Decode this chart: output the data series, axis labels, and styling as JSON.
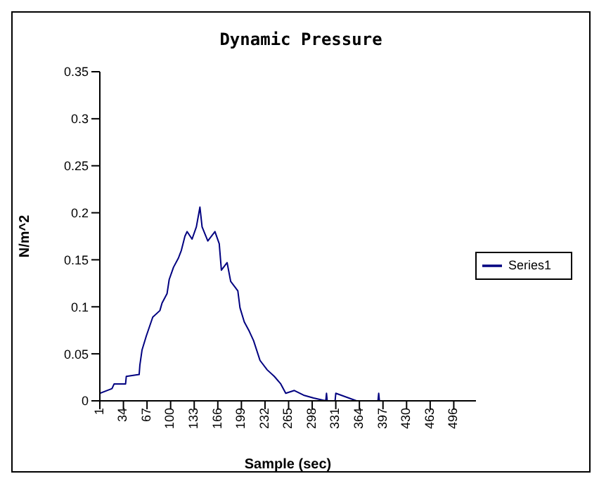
{
  "chart_data": {
    "type": "line",
    "title": "Dynamic Pressure",
    "xlabel": "Sample (sec)",
    "ylabel": "N/m^2",
    "legend": "right",
    "grid": false,
    "marker": "none",
    "xlim": [
      1,
      527
    ],
    "xticks": [
      1,
      34,
      67,
      100,
      133,
      166,
      199,
      232,
      265,
      298,
      331,
      364,
      397,
      430,
      463,
      496
    ],
    "ylim": [
      0,
      0.35
    ],
    "yticks": [
      0,
      0.05,
      0.1,
      0.15,
      0.2,
      0.25,
      0.3,
      0.35
    ],
    "series": [
      {
        "name": "Series1",
        "color": "#000080",
        "x": [
          1,
          18,
          21,
          37,
          38,
          56,
          57,
          60,
          66,
          75,
          85,
          88,
          95,
          98,
          104,
          111,
          115,
          120,
          123,
          130,
          136,
          141,
          144,
          152,
          162,
          168,
          171,
          179,
          184,
          194,
          197,
          203,
          210,
          216,
          225,
          235,
          245,
          254,
          261,
          273,
          286,
          300,
          317,
          318,
          319,
          330,
          331,
          360,
          390,
          391,
          392,
          420,
          527
        ],
        "values": [
          0.008,
          0.013,
          0.018,
          0.018,
          0.026,
          0.028,
          0.038,
          0.054,
          0.069,
          0.089,
          0.096,
          0.104,
          0.114,
          0.129,
          0.142,
          0.152,
          0.16,
          0.175,
          0.18,
          0.172,
          0.185,
          0.206,
          0.185,
          0.17,
          0.18,
          0.167,
          0.139,
          0.147,
          0.127,
          0.117,
          0.099,
          0.084,
          0.074,
          0.064,
          0.043,
          0.033,
          0.026,
          0.018,
          0.008,
          0.011,
          0.006,
          0.003,
          0,
          0.008,
          0,
          0,
          0.008,
          0,
          0,
          0.008,
          0,
          0,
          0
        ]
      }
    ]
  }
}
